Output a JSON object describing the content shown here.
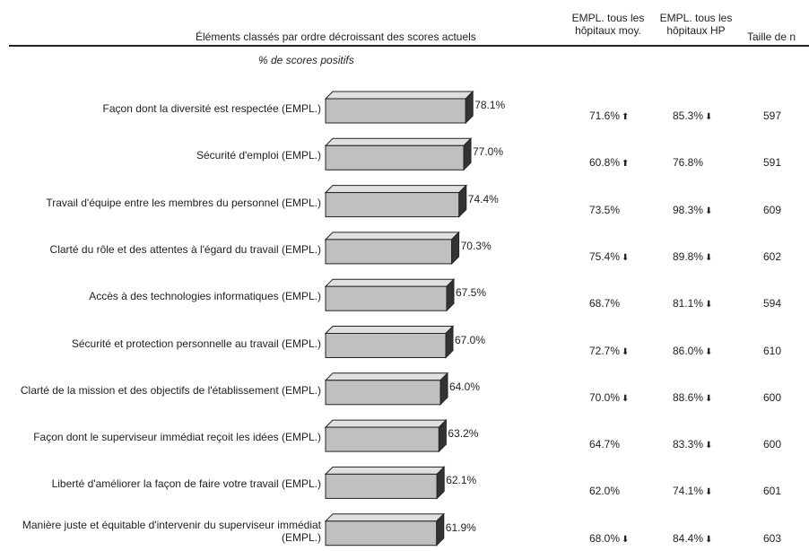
{
  "header": {
    "items_title": "Éléments classés par ordre décroissant des scores actuels",
    "col1": "EMPL. tous les hôpitaux moy.",
    "col2": "EMPL. tous les hôpitaux HP",
    "col3": "Taille de n",
    "subtitle": "% de scores positifs"
  },
  "chart_data": {
    "type": "bar",
    "orientation": "horizontal",
    "title": "Éléments classés par ordre décroissant des scores actuels",
    "xlabel": "% de scores positifs",
    "categories": [
      "Façon dont la diversité est respectée (EMPL.)",
      "Sécurité d'emploi (EMPL.)",
      "Travail d'équipe entre les membres du personnel (EMPL.)",
      "Clarté du rôle et des attentes à l'égard du travail (EMPL.)",
      "Accès à des technologies informatiques (EMPL.)",
      "Sécurité et protection personnelle au travail (EMPL.)",
      "Clarté de la mission et des objectifs de l'établissement (EMPL.)",
      "Façon dont le superviseur immédiat reçoit les idées (EMPL.)",
      "Liberté d'améliorer la façon de faire votre travail (EMPL.)",
      "Manière juste et équitable d'intervenir du superviseur immédiat (EMPL.)"
    ],
    "values": [
      78.1,
      77.0,
      74.4,
      70.3,
      67.5,
      67.0,
      64.0,
      63.2,
      62.1,
      61.9
    ],
    "value_labels": [
      "78.1%",
      "77.0%",
      "74.4%",
      "70.3%",
      "67.5%",
      "67.0%",
      "64.0%",
      "63.2%",
      "62.1%",
      "61.9%"
    ],
    "bar_color": "#c0c0c0",
    "table": {
      "all_hospitals_avg": [
        "71.6%",
        "60.8%",
        "73.5%",
        "75.4%",
        "68.7%",
        "72.7%",
        "70.0%",
        "64.7%",
        "62.0%",
        "68.0%"
      ],
      "all_hospitals_avg_arrow": [
        "up",
        "up",
        "",
        "down",
        "",
        "down",
        "down",
        "",
        "",
        "down"
      ],
      "all_hospitals_hp": [
        "85.3%",
        "76.8%",
        "98.3%",
        "89.8%",
        "81.1%",
        "86.0%",
        "88.6%",
        "83.3%",
        "74.1%",
        "84.4%"
      ],
      "all_hospitals_hp_arrow": [
        "down",
        "",
        "down",
        "down",
        "down",
        "down",
        "down",
        "down",
        "down",
        "down"
      ],
      "n": [
        "597",
        "591",
        "609",
        "602",
        "594",
        "610",
        "600",
        "600",
        "601",
        "603"
      ]
    }
  }
}
